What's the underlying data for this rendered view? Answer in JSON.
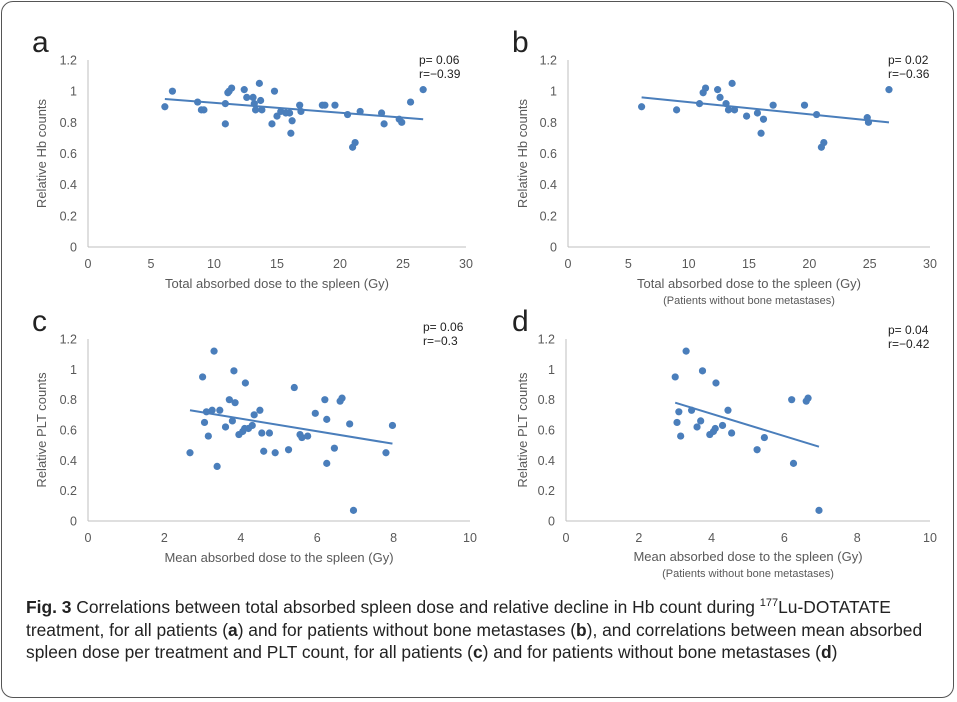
{
  "chart_data": [
    {
      "panel": "a",
      "type": "scatter",
      "ylabel": "Relative Hb counts",
      "xlabel": "Total absorbed dose to the spleen (Gy)",
      "subtitle": "",
      "stats": [
        "p= 0.06",
        "r=−0.39"
      ],
      "xlim": [
        0,
        30
      ],
      "ylim": [
        0,
        1.2
      ],
      "xticks": [
        "0",
        "5",
        "10",
        "15",
        "20",
        "25",
        "30"
      ],
      "yticks": [
        "0",
        "0.2",
        "0.4",
        "0.6",
        "0.8",
        "1",
        "1.2"
      ],
      "xtick_values": [
        0,
        5,
        10,
        15,
        20,
        25,
        30
      ],
      "ytick_values": [
        0,
        0.2,
        0.4,
        0.6,
        0.8,
        1,
        1.2
      ],
      "grid": false,
      "trendline": [
        [
          6.1,
          0.95
        ],
        [
          26.6,
          0.82
        ]
      ],
      "points": [
        [
          6.1,
          0.9
        ],
        [
          6.7,
          1.0
        ],
        [
          8.7,
          0.93
        ],
        [
          9.0,
          0.88
        ],
        [
          9.2,
          0.88
        ],
        [
          10.9,
          0.92
        ],
        [
          10.9,
          0.79
        ],
        [
          11.1,
          0.99
        ],
        [
          11.2,
          1.0
        ],
        [
          11.4,
          1.02
        ],
        [
          12.4,
          1.01
        ],
        [
          12.6,
          0.96
        ],
        [
          13.1,
          0.96
        ],
        [
          13.2,
          0.92
        ],
        [
          13.3,
          0.88
        ],
        [
          13.6,
          1.05
        ],
        [
          13.7,
          0.94
        ],
        [
          13.8,
          0.88
        ],
        [
          14.6,
          0.79
        ],
        [
          14.8,
          1.0
        ],
        [
          15.0,
          0.84
        ],
        [
          15.3,
          0.87
        ],
        [
          15.7,
          0.86
        ],
        [
          16.0,
          0.86
        ],
        [
          16.1,
          0.73
        ],
        [
          16.2,
          0.81
        ],
        [
          16.8,
          0.91
        ],
        [
          16.9,
          0.87
        ],
        [
          18.6,
          0.91
        ],
        [
          18.8,
          0.91
        ],
        [
          19.6,
          0.91
        ],
        [
          20.6,
          0.85
        ],
        [
          21.0,
          0.64
        ],
        [
          21.2,
          0.67
        ],
        [
          21.6,
          0.87
        ],
        [
          23.3,
          0.86
        ],
        [
          23.5,
          0.79
        ],
        [
          24.7,
          0.82
        ],
        [
          24.9,
          0.8
        ],
        [
          25.6,
          0.93
        ],
        [
          26.6,
          1.01
        ]
      ]
    },
    {
      "panel": "b",
      "type": "scatter",
      "ylabel": "Relative Hb counts",
      "xlabel": "Total absorbed dose to the spleen (Gy)",
      "subtitle": "(Patients without bone metastases)",
      "stats": [
        "p= 0.02",
        "r=−0.36"
      ],
      "xlim": [
        0,
        30
      ],
      "ylim": [
        0,
        1.2
      ],
      "xticks": [
        "0",
        "5",
        "10",
        "15",
        "20",
        "25",
        "30"
      ],
      "yticks": [
        "0",
        "0.2",
        "0.4",
        "0.6",
        "0.8",
        "1",
        "1.2"
      ],
      "xtick_values": [
        0,
        5,
        10,
        15,
        20,
        25,
        30
      ],
      "ytick_values": [
        0,
        0.2,
        0.4,
        0.6,
        0.8,
        1,
        1.2
      ],
      "grid": false,
      "trendline": [
        [
          6.1,
          0.96
        ],
        [
          26.6,
          0.8
        ]
      ],
      "points": [
        [
          6.1,
          0.9
        ],
        [
          9.0,
          0.88
        ],
        [
          10.9,
          0.92
        ],
        [
          11.2,
          0.99
        ],
        [
          11.4,
          1.02
        ],
        [
          12.4,
          1.01
        ],
        [
          12.6,
          0.96
        ],
        [
          13.1,
          0.92
        ],
        [
          13.3,
          0.88
        ],
        [
          13.6,
          1.05
        ],
        [
          13.8,
          0.88
        ],
        [
          14.8,
          0.84
        ],
        [
          15.7,
          0.86
        ],
        [
          16.0,
          0.73
        ],
        [
          16.2,
          0.82
        ],
        [
          17.0,
          0.91
        ],
        [
          19.6,
          0.91
        ],
        [
          20.6,
          0.85
        ],
        [
          21.0,
          0.64
        ],
        [
          21.2,
          0.67
        ],
        [
          24.8,
          0.83
        ],
        [
          24.9,
          0.8
        ],
        [
          26.6,
          1.01
        ]
      ]
    },
    {
      "panel": "c",
      "type": "scatter",
      "ylabel": "Relative PLT counts",
      "xlabel": "Mean absorbed dose to the spleen (Gy)",
      "subtitle": "",
      "stats": [
        "p= 0.06",
        "r=−0.3"
      ],
      "xlim": [
        0,
        10
      ],
      "ylim": [
        0,
        1.2
      ],
      "xticks": [
        "0",
        "2",
        "4",
        "6",
        "8",
        "10"
      ],
      "yticks": [
        "0",
        "0.2",
        "0.4",
        "0.6",
        "0.8",
        "1",
        "1.2"
      ],
      "xtick_values": [
        0,
        2,
        4,
        6,
        8,
        10
      ],
      "ytick_values": [
        0,
        0.2,
        0.4,
        0.6,
        0.8,
        1,
        1.2
      ],
      "grid": false,
      "trendline": [
        [
          2.67,
          0.73
        ],
        [
          7.97,
          0.51
        ]
      ],
      "points": [
        [
          2.67,
          0.45
        ],
        [
          3.0,
          0.95
        ],
        [
          3.05,
          0.65
        ],
        [
          3.1,
          0.72
        ],
        [
          3.15,
          0.56
        ],
        [
          3.25,
          0.73
        ],
        [
          3.3,
          1.12
        ],
        [
          3.38,
          0.36
        ],
        [
          3.45,
          0.73
        ],
        [
          3.6,
          0.62
        ],
        [
          3.7,
          0.8
        ],
        [
          3.78,
          0.66
        ],
        [
          3.82,
          0.99
        ],
        [
          3.85,
          0.78
        ],
        [
          3.95,
          0.57
        ],
        [
          4.05,
          0.59
        ],
        [
          4.1,
          0.61
        ],
        [
          4.12,
          0.91
        ],
        [
          4.2,
          0.61
        ],
        [
          4.3,
          0.63
        ],
        [
          4.35,
          0.7
        ],
        [
          4.5,
          0.73
        ],
        [
          4.55,
          0.58
        ],
        [
          4.6,
          0.46
        ],
        [
          4.75,
          0.58
        ],
        [
          4.9,
          0.45
        ],
        [
          5.25,
          0.47
        ],
        [
          5.4,
          0.88
        ],
        [
          5.55,
          0.57
        ],
        [
          5.6,
          0.55
        ],
        [
          5.75,
          0.56
        ],
        [
          5.95,
          0.71
        ],
        [
          6.2,
          0.8
        ],
        [
          6.25,
          0.67
        ],
        [
          6.25,
          0.38
        ],
        [
          6.45,
          0.48
        ],
        [
          6.6,
          0.79
        ],
        [
          6.65,
          0.81
        ],
        [
          6.85,
          0.64
        ],
        [
          6.95,
          0.07
        ],
        [
          7.8,
          0.45
        ],
        [
          7.97,
          0.63
        ]
      ]
    },
    {
      "panel": "d",
      "type": "scatter",
      "ylabel": "Relative PLT counts",
      "xlabel": "Mean absorbed dose to the spleen (Gy)",
      "subtitle": "(Patients without bone metastases)",
      "stats": [
        "p= 0.04",
        "r=−0.42"
      ],
      "xlim": [
        0,
        10
      ],
      "ylim": [
        0,
        1.2
      ],
      "xticks": [
        "0",
        "2",
        "4",
        "6",
        "8",
        "10"
      ],
      "yticks": [
        "0",
        "0.2",
        "0.4",
        "0.6",
        "0.8",
        "1",
        "1.2"
      ],
      "xtick_values": [
        0,
        2,
        4,
        6,
        8,
        10
      ],
      "ytick_values": [
        0,
        0.2,
        0.4,
        0.6,
        0.8,
        1,
        1.2
      ],
      "grid": false,
      "trendline": [
        [
          3.0,
          0.78
        ],
        [
          6.95,
          0.49
        ]
      ],
      "points": [
        [
          3.0,
          0.95
        ],
        [
          3.05,
          0.65
        ],
        [
          3.1,
          0.72
        ],
        [
          3.15,
          0.56
        ],
        [
          3.3,
          1.12
        ],
        [
          3.45,
          0.73
        ],
        [
          3.6,
          0.62
        ],
        [
          3.7,
          0.66
        ],
        [
          3.75,
          0.99
        ],
        [
          3.95,
          0.57
        ],
        [
          4.05,
          0.59
        ],
        [
          4.1,
          0.61
        ],
        [
          4.12,
          0.91
        ],
        [
          4.3,
          0.63
        ],
        [
          4.45,
          0.73
        ],
        [
          4.55,
          0.58
        ],
        [
          5.25,
          0.47
        ],
        [
          5.45,
          0.55
        ],
        [
          6.2,
          0.8
        ],
        [
          6.25,
          0.38
        ],
        [
          6.6,
          0.79
        ],
        [
          6.65,
          0.81
        ],
        [
          6.95,
          0.07
        ]
      ]
    }
  ],
  "caption": {
    "fig_label": "Fig. 3",
    "t1": " Correlations between total absorbed spleen dose and relative decline in Hb count during ",
    "sup": "177",
    "t2": "Lu-DOTATATE treatment, for all patients (",
    "ra": "a",
    "t3": ") and for patients without bone metastases (",
    "rb": "b",
    "t4": "), and correlations between mean absorbed spleen dose per treatment and PLT count, for all patients (",
    "rc": "c",
    "t5": ") and for patients without bone metastases (",
    "rd": "d",
    "t6": ")"
  },
  "colors": {
    "series": "#4a7ebb",
    "axis": "#bfbfbf",
    "text": "#595959"
  }
}
